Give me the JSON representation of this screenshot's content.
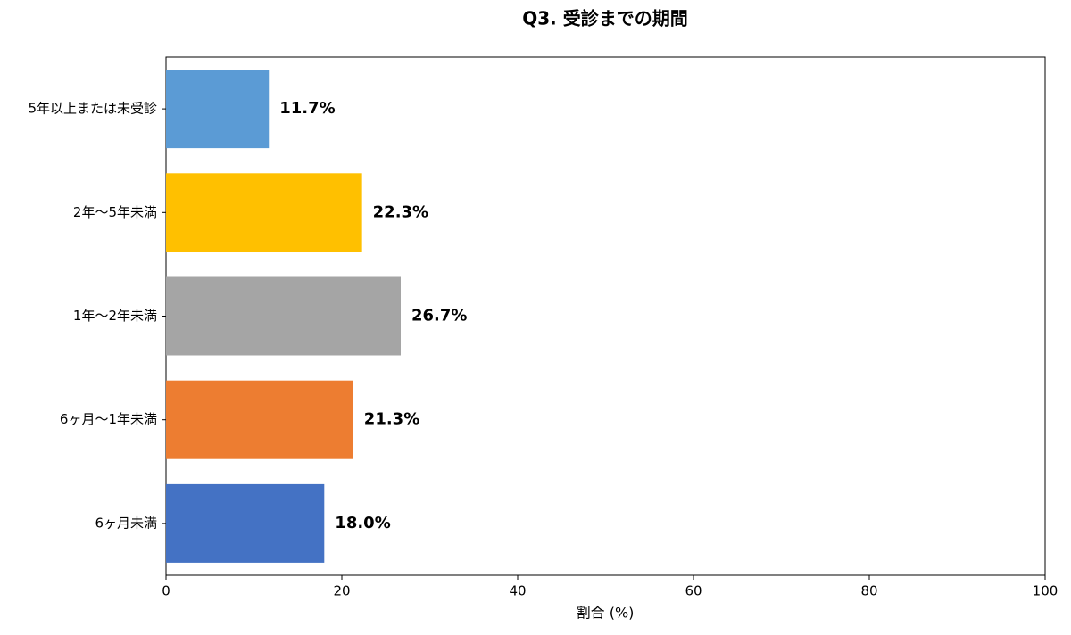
{
  "chart_data": {
    "type": "hbar",
    "title": "Q3. 受診までの期間",
    "categories": [
      "5年以上または未受診",
      "2年〜5年未満",
      "1年〜2年未満",
      "6ヶ月〜1年未満",
      "6ヶ月未満"
    ],
    "values": [
      11.7,
      22.3,
      26.7,
      21.3,
      18.0
    ],
    "value_labels": [
      "11.7%",
      "22.3%",
      "26.7%",
      "21.3%",
      "18.0%"
    ],
    "colors": [
      "#5b9bd5",
      "#ffc000",
      "#a5a5a5",
      "#ed7d31",
      "#4472c4"
    ],
    "xlim": [
      0,
      100
    ],
    "xticks": [
      0,
      20,
      40,
      60,
      80,
      100
    ],
    "xlabel": "割合 (%)"
  }
}
